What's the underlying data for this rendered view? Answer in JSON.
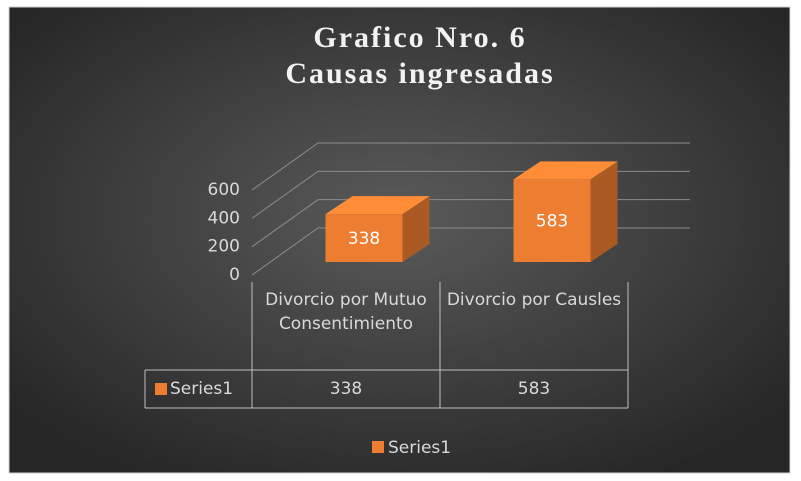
{
  "chart_data": {
    "type": "bar3d",
    "title": [
      "Grafico Nro. 6",
      "Causas ingresadas"
    ],
    "categories": [
      "Divorcio por Mutuo Consentimiento",
      "Divorcio por Causles"
    ],
    "series": [
      {
        "name": "Series1",
        "color": "#ed7d31",
        "values": [
          338,
          583
        ]
      }
    ],
    "ylim": [
      0,
      600
    ],
    "yticks": [
      0,
      200,
      400,
      600
    ],
    "grid": true,
    "data_table": true,
    "legend": "bottom"
  }
}
